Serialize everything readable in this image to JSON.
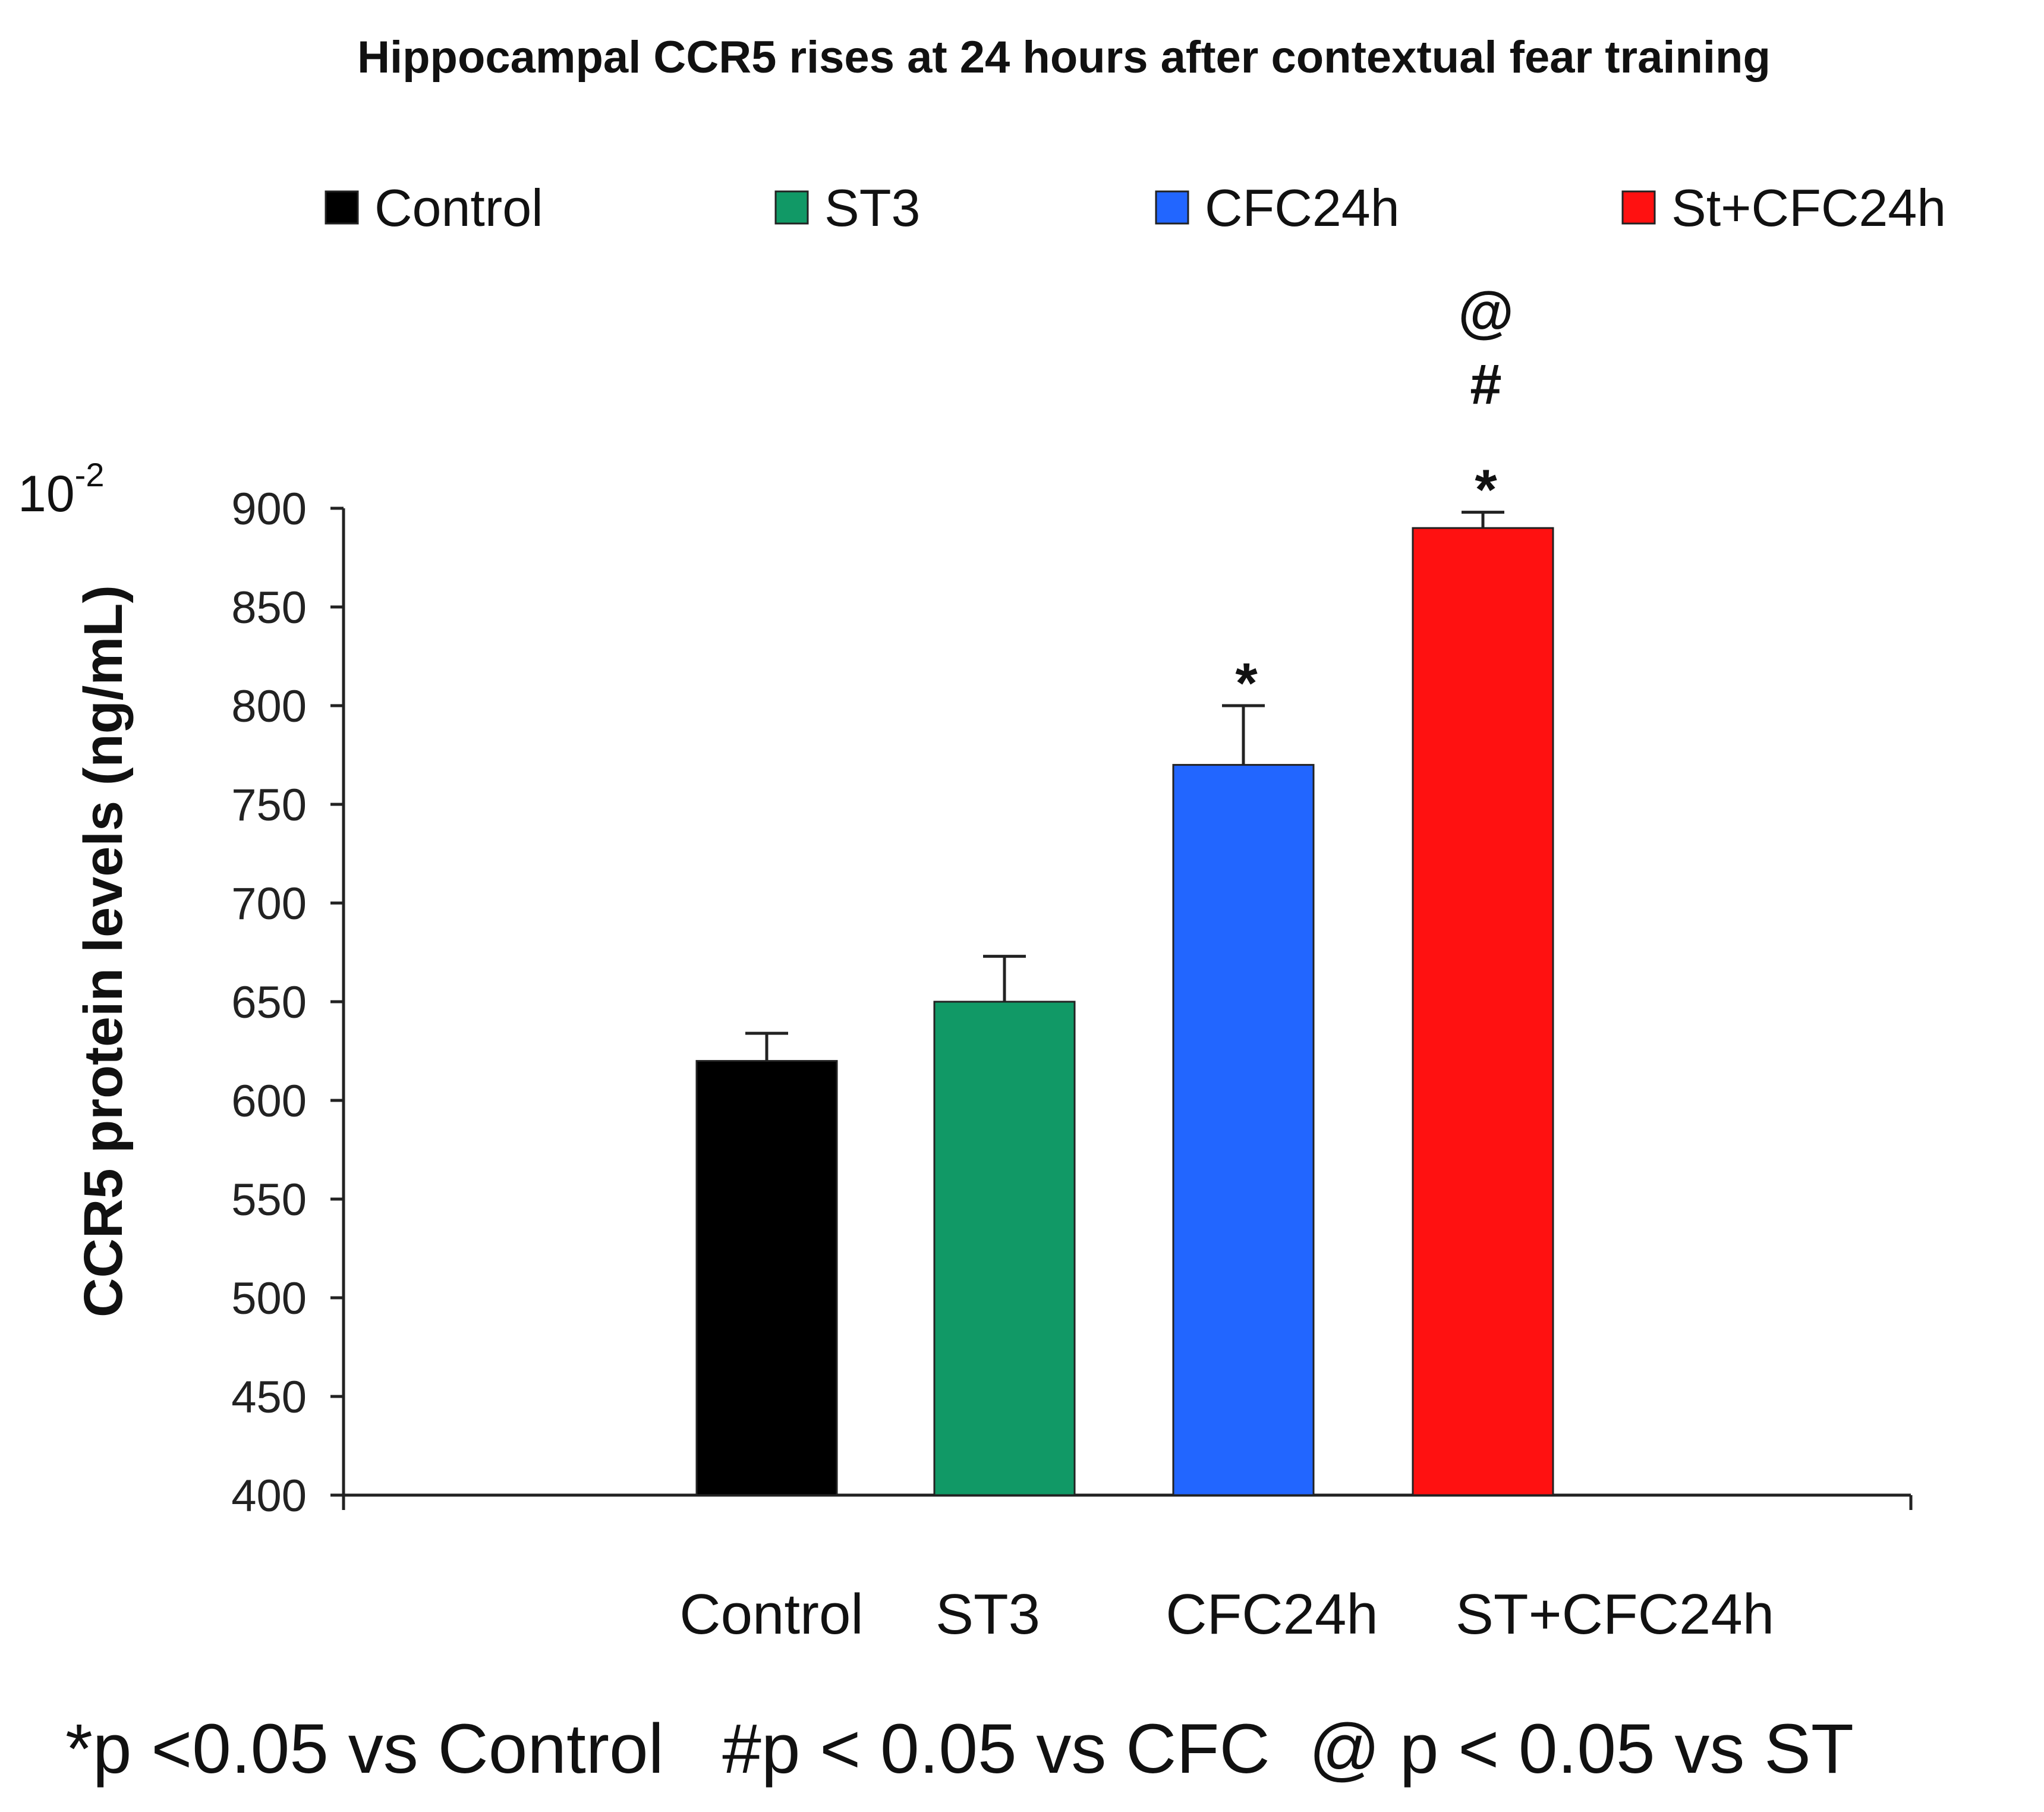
{
  "chart_data": {
    "type": "bar",
    "title": "Hippocampal CCR5 rises at 24 hours after contextual fear training",
    "ylabel": "CCR5 protein levels (ng/mL)",
    "xlabel": "",
    "y_scale_base": "10",
    "y_scale_exponent": "-2",
    "ylim": [
      400,
      900
    ],
    "yticks": [
      400,
      450,
      500,
      550,
      600,
      650,
      700,
      750,
      800,
      850,
      900
    ],
    "categories": [
      "Control",
      "ST3",
      "CFC24h",
      "ST+CFC24h"
    ],
    "values": [
      620,
      650,
      770,
      890
    ],
    "errors": [
      14,
      23,
      30,
      8
    ],
    "colors": [
      "#000000",
      "#119966",
      "#2266ff",
      "#ff1111"
    ],
    "legend": {
      "position": "top",
      "entries": [
        "Control",
        "ST3",
        "CFC24h",
        "St+CFC24h"
      ]
    },
    "annotations": [
      {
        "category": "CFC24h",
        "marks": [
          "*"
        ]
      },
      {
        "category": "ST+CFC24h",
        "marks": [
          "@",
          "#",
          "*"
        ]
      }
    ],
    "footnote": "*p <0.05 vs Control   #p < 0.05 vs CFC  @ p < 0.05 vs ST"
  }
}
